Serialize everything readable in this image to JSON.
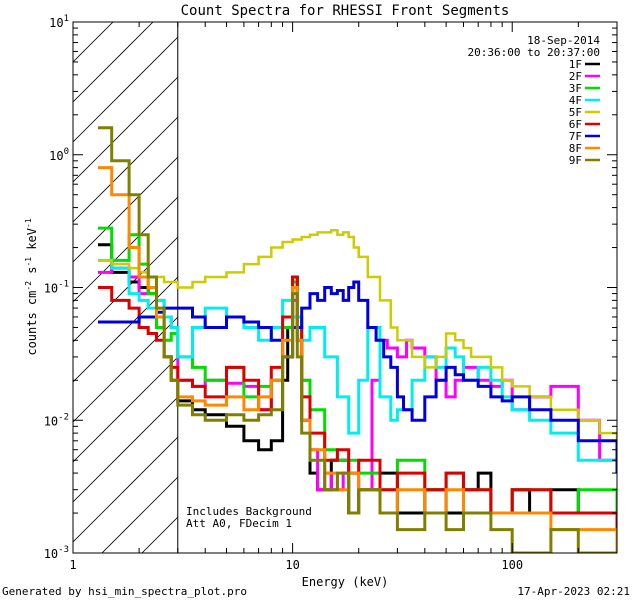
{
  "chart_data": {
    "type": "line",
    "title": "Count Spectra for RHESSI Front Segments",
    "xlabel": "Energy (keV)",
    "ylabel_main": "counts cm",
    "ylabel_sup1": "-2",
    "ylabel_mid": " s",
    "ylabel_sup2": "-1",
    "ylabel_tail": " keV",
    "ylabel_sup3": "-1",
    "xscale": "log",
    "yscale": "log",
    "xlim": [
      1,
      300
    ],
    "ylim": [
      0.001,
      10
    ],
    "x_ticks": [
      {
        "v": 1,
        "label": "1"
      },
      {
        "v": 10,
        "label": "10"
      },
      {
        "v": 100,
        "label": "100"
      }
    ],
    "y_ticks": [
      {
        "base": "10",
        "exp": "1"
      },
      {
        "base": "10",
        "exp": "0"
      },
      {
        "base": "10",
        "exp": "-1"
      },
      {
        "base": "10",
        "exp": "-2"
      },
      {
        "base": "10",
        "exp": "-3"
      }
    ],
    "excluded_region": {
      "x": [
        1,
        3
      ]
    },
    "date": "18-Sep-2014",
    "time_range": "20:36:00 to 20:37:00",
    "notes": [
      "Includes Background",
      "Att A0, FDecim 1"
    ],
    "series": [
      {
        "name": "1F",
        "color": "#000000",
        "width": 3.0,
        "x": [
          1.3,
          1.5,
          1.8,
          2.0,
          2.2,
          2.4,
          2.6,
          2.8,
          3.0,
          3.5,
          4,
          5,
          6,
          7,
          8,
          9,
          9.5,
          10,
          10.5,
          11,
          12,
          13,
          15,
          18,
          20,
          25,
          30,
          40,
          50,
          60,
          70,
          80,
          100,
          120,
          150,
          200,
          250,
          300
        ],
        "y": [
          0.21,
          0.13,
          0.11,
          0.1,
          0.09,
          0.06,
          0.03,
          0.02,
          0.014,
          0.012,
          0.011,
          0.009,
          0.007,
          0.006,
          0.007,
          0.02,
          0.05,
          0.12,
          0.04,
          0.01,
          0.004,
          0.003,
          0.005,
          0.002,
          0.003,
          0.004,
          0.002,
          0.003,
          0.002,
          0.003,
          0.004,
          0.002,
          0.003,
          0.002,
          0.003,
          0.002,
          0.002,
          0.0015
        ]
      },
      {
        "name": "2F",
        "color": "#ff00ff",
        "width": 3.0,
        "x": [
          1.3,
          1.5,
          1.8,
          2.0,
          2.2,
          2.4,
          2.6,
          2.8,
          3.0,
          3.5,
          4,
          5,
          6,
          7,
          8,
          9,
          10,
          10.5,
          11,
          12,
          13,
          14,
          15,
          17,
          20,
          23,
          25,
          27,
          30,
          33,
          35,
          40,
          45,
          50,
          55,
          60,
          70,
          80,
          90,
          100,
          120,
          150,
          200,
          250,
          300
        ],
        "y": [
          0.13,
          0.14,
          0.12,
          0.09,
          0.1,
          0.08,
          0.06,
          0.05,
          0.02,
          0.018,
          0.02,
          0.019,
          0.018,
          0.012,
          0.02,
          0.03,
          0.08,
          0.06,
          0.02,
          0.006,
          0.003,
          0.004,
          0.003,
          0.004,
          0.003,
          0.02,
          0.04,
          0.035,
          0.03,
          0.04,
          0.035,
          0.03,
          0.02,
          0.015,
          0.02,
          0.025,
          0.02,
          0.018,
          0.02,
          0.012,
          0.015,
          0.018,
          0.01,
          0.005,
          0.004
        ]
      },
      {
        "name": "3F",
        "color": "#00dd00",
        "width": 3.0,
        "x": [
          1.3,
          1.5,
          1.8,
          2.0,
          2.2,
          2.4,
          2.6,
          2.8,
          3.0,
          3.5,
          4,
          5,
          6,
          7,
          8,
          9,
          10,
          10.5,
          11,
          12,
          14,
          16,
          20,
          25,
          30,
          40,
          50,
          60,
          80,
          100,
          150,
          200,
          300
        ],
        "y": [
          0.28,
          0.16,
          0.25,
          0.15,
          0.09,
          0.05,
          0.04,
          0.045,
          0.03,
          0.025,
          0.02,
          0.025,
          0.015,
          0.018,
          0.02,
          0.05,
          0.11,
          0.05,
          0.02,
          0.012,
          0.006,
          0.005,
          0.004,
          0.003,
          0.005,
          0.003,
          0.004,
          0.003,
          0.002,
          0.003,
          0.002,
          0.003,
          0.002
        ]
      },
      {
        "name": "4F",
        "color": "#00eeee",
        "width": 3.0,
        "x": [
          1.3,
          1.5,
          1.8,
          2.0,
          2.2,
          2.4,
          2.6,
          2.8,
          3.0,
          3.5,
          4,
          5,
          6,
          7,
          8,
          9,
          10,
          11,
          12,
          14,
          16,
          18,
          20,
          22,
          25,
          28,
          30,
          35,
          40,
          45,
          50,
          55,
          60,
          70,
          80,
          90,
          100,
          120,
          150,
          200
        ],
        "y": [
          0.16,
          0.14,
          0.09,
          0.08,
          0.07,
          0.08,
          0.06,
          0.05,
          0.03,
          0.05,
          0.07,
          0.06,
          0.05,
          0.04,
          0.05,
          0.08,
          0.06,
          0.04,
          0.05,
          0.03,
          0.015,
          0.008,
          0.02,
          0.05,
          0.015,
          0.01,
          0.012,
          0.02,
          0.03,
          0.025,
          0.035,
          0.03,
          0.02,
          0.025,
          0.02,
          0.015,
          0.012,
          0.01,
          0.008,
          0.005
        ]
      },
      {
        "name": "5F",
        "color": "#cccc00",
        "width": 2.5,
        "x": [
          1.3,
          1.5,
          1.8,
          2.0,
          2.2,
          2.4,
          2.6,
          2.8,
          3.0,
          3.5,
          4,
          5,
          6,
          7,
          8,
          9,
          10,
          11,
          12,
          13,
          14,
          15,
          16,
          17,
          18,
          19,
          20,
          22,
          25,
          28,
          30,
          35,
          40,
          45,
          50,
          55,
          60,
          65,
          70,
          80,
          90,
          100,
          120,
          150,
          200,
          250,
          300
        ],
        "y": [
          0.16,
          0.15,
          0.14,
          0.13,
          0.12,
          0.12,
          0.11,
          0.11,
          0.1,
          0.11,
          0.12,
          0.13,
          0.15,
          0.17,
          0.2,
          0.22,
          0.23,
          0.24,
          0.25,
          0.26,
          0.26,
          0.27,
          0.25,
          0.26,
          0.24,
          0.2,
          0.17,
          0.12,
          0.08,
          0.05,
          0.04,
          0.03,
          0.025,
          0.03,
          0.045,
          0.04,
          0.035,
          0.03,
          0.03,
          0.025,
          0.02,
          0.018,
          0.015,
          0.012,
          0.01,
          0.008,
          0.006
        ]
      },
      {
        "name": "6F",
        "color": "#dd0000",
        "width": 3.0,
        "x": [
          1.3,
          1.5,
          1.8,
          2.0,
          2.2,
          2.4,
          2.6,
          2.8,
          3.0,
          3.5,
          4,
          5,
          6,
          7,
          8,
          9,
          10,
          10.5,
          11,
          12,
          14,
          16,
          18,
          20,
          25,
          30,
          40,
          50,
          60,
          80,
          100,
          150,
          200,
          300
        ],
        "y": [
          0.1,
          0.08,
          0.07,
          0.05,
          0.045,
          0.04,
          0.03,
          0.025,
          0.02,
          0.018,
          0.015,
          0.025,
          0.02,
          0.012,
          0.025,
          0.06,
          0.12,
          0.05,
          0.015,
          0.008,
          0.005,
          0.006,
          0.004,
          0.005,
          0.003,
          0.004,
          0.003,
          0.004,
          0.003,
          0.002,
          0.003,
          0.002,
          0.002,
          0.0015
        ]
      },
      {
        "name": "7F",
        "color": "#0000dd",
        "width": 3.0,
        "x": [
          1.3,
          1.5,
          1.8,
          2.0,
          2.2,
          2.4,
          2.6,
          2.8,
          3.0,
          3.5,
          4,
          5,
          6,
          7,
          8,
          9,
          10,
          11,
          12,
          13,
          14,
          15,
          16,
          17,
          18,
          19,
          20,
          22,
          24,
          26,
          28,
          30,
          32,
          35,
          40,
          45,
          50,
          55,
          60,
          70,
          80,
          90,
          100,
          120,
          150,
          200,
          300
        ],
        "y": [
          0.055,
          0.055,
          0.055,
          0.06,
          0.06,
          0.065,
          0.07,
          0.07,
          0.07,
          0.06,
          0.05,
          0.06,
          0.055,
          0.05,
          0.04,
          0.03,
          0.05,
          0.07,
          0.09,
          0.08,
          0.1,
          0.09,
          0.095,
          0.08,
          0.1,
          0.11,
          0.08,
          0.05,
          0.04,
          0.03,
          0.025,
          0.015,
          0.012,
          0.01,
          0.015,
          0.02,
          0.025,
          0.022,
          0.02,
          0.018,
          0.015,
          0.014,
          0.015,
          0.012,
          0.01,
          0.007,
          0.004
        ]
      },
      {
        "name": "8F",
        "color": "#ff8800",
        "width": 3.0,
        "x": [
          1.3,
          1.5,
          1.8,
          2.0,
          2.2,
          2.4,
          2.6,
          2.8,
          3.0,
          3.5,
          4,
          5,
          6,
          7,
          8,
          9,
          10,
          10.5,
          11,
          12,
          14,
          16,
          18,
          20,
          25,
          30,
          40,
          50,
          60,
          80,
          100,
          150,
          200,
          300
        ],
        "y": [
          0.8,
          0.5,
          0.2,
          0.12,
          0.1,
          0.06,
          0.03,
          0.02,
          0.015,
          0.014,
          0.013,
          0.015,
          0.012,
          0.015,
          0.02,
          0.04,
          0.1,
          0.04,
          0.01,
          0.006,
          0.004,
          0.003,
          0.004,
          0.003,
          0.002,
          0.003,
          0.002,
          0.003,
          0.002,
          0.002,
          0.002,
          0.0015,
          0.0015,
          0.001
        ]
      },
      {
        "name": "9F",
        "color": "#808000",
        "width": 3.0,
        "x": [
          1.3,
          1.5,
          1.8,
          2.0,
          2.2,
          2.4,
          2.6,
          2.8,
          3.0,
          3.5,
          4,
          5,
          6,
          7,
          8,
          9,
          10,
          10.5,
          11,
          12,
          14,
          16,
          18,
          20,
          25,
          30,
          40,
          50,
          60,
          80,
          100,
          150,
          200,
          300
        ],
        "y": [
          1.6,
          0.9,
          0.5,
          0.25,
          0.12,
          0.07,
          0.03,
          0.02,
          0.013,
          0.011,
          0.01,
          0.011,
          0.01,
          0.011,
          0.012,
          0.03,
          0.09,
          0.03,
          0.008,
          0.005,
          0.003,
          0.004,
          0.002,
          0.003,
          0.002,
          0.0015,
          0.002,
          0.0015,
          0.002,
          0.0015,
          0.001,
          0.0015,
          0.001,
          0.001
        ]
      }
    ]
  },
  "footer": {
    "generated_by": "Generated by hsi_min_spectra_plot.pro",
    "timestamp": "17-Apr-2023 02:21"
  }
}
